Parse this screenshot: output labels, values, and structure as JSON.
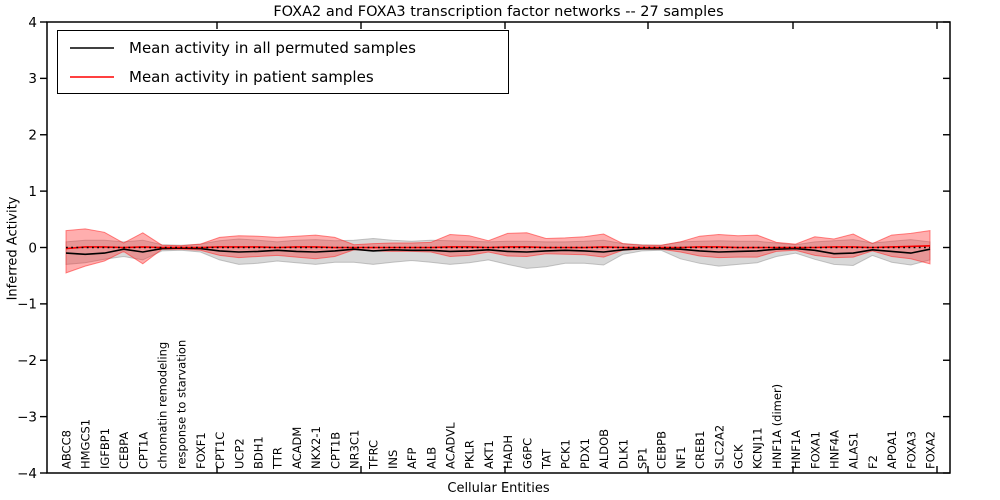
{
  "title": "FOXA2 and FOXA3 transcription factor networks -- 27 samples",
  "legend": {
    "permuted_label": "Mean activity in all permuted samples",
    "patient_label": "Mean activity in patient samples"
  },
  "chart_data": {
    "type": "line",
    "title": "FOXA2 and FOXA3 transcription factor networks -- 27 samples",
    "xlabel": "Cellular Entities",
    "ylabel": "Inferred Activity",
    "ylim": [
      -4,
      4
    ],
    "grid": false,
    "legend_position": "upper left",
    "yticks": [
      {
        "value": 4,
        "label": "4"
      },
      {
        "value": 3,
        "label": "3"
      },
      {
        "value": 2,
        "label": "2"
      },
      {
        "value": 1,
        "label": "1"
      },
      {
        "value": 0,
        "label": "0"
      },
      {
        "value": -1,
        "label": "−1"
      },
      {
        "value": -2,
        "label": "−2"
      },
      {
        "value": -3,
        "label": "−3"
      },
      {
        "value": -4,
        "label": "−4"
      }
    ],
    "categories": [
      "ABCC8",
      "HMGCS1",
      "IGFBP1",
      "CEBPA",
      "CPT1A",
      "chromatin remodeling",
      "response to starvation",
      "FOXF1",
      "CPT1C",
      "UCP2",
      "BDH1",
      "TTR",
      "ACADM",
      "NKX2-1",
      "CPT1B",
      "NR3C1",
      "TFRC",
      "INS",
      "AFP",
      "ALB",
      "ACADVL",
      "PKLR",
      "AKT1",
      "HADH",
      "G6PC",
      "TAT",
      "PCK1",
      "PDX1",
      "ALDOB",
      "DLK1",
      "SP1",
      "CEBPB",
      "NF1",
      "CREB1",
      "SLC2A2",
      "GCK",
      "KCNJ11",
      "HNF1A (dimer)",
      "HNF1A",
      "FOXA1",
      "HNF4A",
      "ALAS1",
      "F2",
      "APOA1",
      "FOXA3",
      "FOXA2"
    ],
    "series": [
      {
        "name": "Mean activity in all permuted samples",
        "color": "#000000",
        "style": "solid",
        "values": [
          -0.1,
          -0.12,
          -0.1,
          -0.03,
          -0.08,
          -0.02,
          -0.01,
          -0.02,
          -0.06,
          -0.08,
          -0.07,
          -0.05,
          -0.07,
          -0.08,
          -0.06,
          -0.03,
          -0.06,
          -0.04,
          -0.05,
          -0.05,
          -0.07,
          -0.06,
          -0.04,
          -0.07,
          -0.08,
          -0.06,
          -0.05,
          -0.06,
          -0.08,
          -0.04,
          -0.02,
          -0.02,
          -0.03,
          -0.06,
          -0.08,
          -0.07,
          -0.06,
          -0.03,
          -0.02,
          -0.05,
          -0.11,
          -0.1,
          -0.04,
          -0.07,
          -0.1,
          -0.03
        ]
      },
      {
        "name": "Mean activity in patient samples",
        "color": "#ff0000",
        "style": "solid",
        "values": [
          -0.02,
          0.01,
          0.01,
          0.0,
          0.01,
          0.0,
          0.0,
          0.0,
          0.01,
          0.01,
          0.01,
          0.0,
          0.01,
          0.01,
          0.0,
          0.0,
          0.0,
          0.0,
          0.0,
          0.0,
          0.01,
          0.01,
          0.0,
          0.01,
          0.01,
          0.0,
          0.0,
          0.0,
          0.01,
          0.0,
          0.0,
          0.0,
          0.0,
          0.01,
          0.01,
          0.0,
          0.0,
          0.0,
          0.0,
          0.0,
          0.01,
          0.01,
          0.0,
          0.01,
          0.02,
          0.03
        ]
      }
    ],
    "bands": [
      {
        "name": "permuted-std-band",
        "color": "#999999",
        "opacity": 0.38,
        "upper": [
          0.1,
          0.13,
          0.13,
          0.1,
          0.13,
          0.05,
          0.04,
          0.06,
          0.12,
          0.15,
          0.13,
          0.1,
          0.13,
          0.14,
          0.12,
          0.13,
          0.16,
          0.13,
          0.11,
          0.13,
          0.12,
          0.11,
          0.1,
          0.11,
          0.11,
          0.1,
          0.1,
          0.11,
          0.13,
          0.07,
          0.05,
          0.04,
          0.1,
          0.11,
          0.12,
          0.11,
          0.11,
          0.08,
          0.05,
          0.1,
          0.12,
          0.14,
          0.08,
          0.11,
          0.14,
          0.1
        ],
        "lower": [
          -0.3,
          -0.27,
          -0.21,
          -0.16,
          -0.22,
          -0.06,
          -0.05,
          -0.08,
          -0.22,
          -0.3,
          -0.28,
          -0.24,
          -0.27,
          -0.3,
          -0.26,
          -0.26,
          -0.3,
          -0.26,
          -0.23,
          -0.26,
          -0.3,
          -0.27,
          -0.22,
          -0.3,
          -0.37,
          -0.34,
          -0.28,
          -0.28,
          -0.31,
          -0.12,
          -0.06,
          -0.05,
          -0.2,
          -0.28,
          -0.33,
          -0.3,
          -0.27,
          -0.16,
          -0.1,
          -0.21,
          -0.3,
          -0.32,
          -0.14,
          -0.26,
          -0.31,
          -0.22
        ]
      },
      {
        "name": "patient-std-band",
        "color": "#ff2a2a",
        "opacity": 0.38,
        "upper": [
          0.3,
          0.33,
          0.27,
          0.08,
          0.26,
          0.04,
          0.03,
          0.06,
          0.18,
          0.21,
          0.2,
          0.18,
          0.2,
          0.22,
          0.18,
          0.05,
          0.07,
          0.08,
          0.08,
          0.09,
          0.23,
          0.21,
          0.12,
          0.25,
          0.26,
          0.16,
          0.17,
          0.19,
          0.24,
          0.07,
          0.04,
          0.04,
          0.1,
          0.2,
          0.23,
          0.21,
          0.22,
          0.09,
          0.06,
          0.19,
          0.15,
          0.24,
          0.07,
          0.22,
          0.25,
          0.3
        ],
        "lower": [
          -0.45,
          -0.33,
          -0.24,
          -0.07,
          -0.29,
          -0.03,
          -0.03,
          -0.05,
          -0.14,
          -0.18,
          -0.16,
          -0.14,
          -0.17,
          -0.2,
          -0.16,
          -0.04,
          -0.06,
          -0.07,
          -0.07,
          -0.08,
          -0.16,
          -0.14,
          -0.08,
          -0.15,
          -0.16,
          -0.11,
          -0.12,
          -0.13,
          -0.17,
          -0.05,
          -0.03,
          -0.03,
          -0.08,
          -0.15,
          -0.18,
          -0.17,
          -0.17,
          -0.07,
          -0.05,
          -0.14,
          -0.18,
          -0.17,
          -0.06,
          -0.16,
          -0.2,
          -0.29
        ]
      }
    ],
    "zero_line": {
      "y": 0,
      "style": "dotted",
      "color": "#000000"
    }
  }
}
